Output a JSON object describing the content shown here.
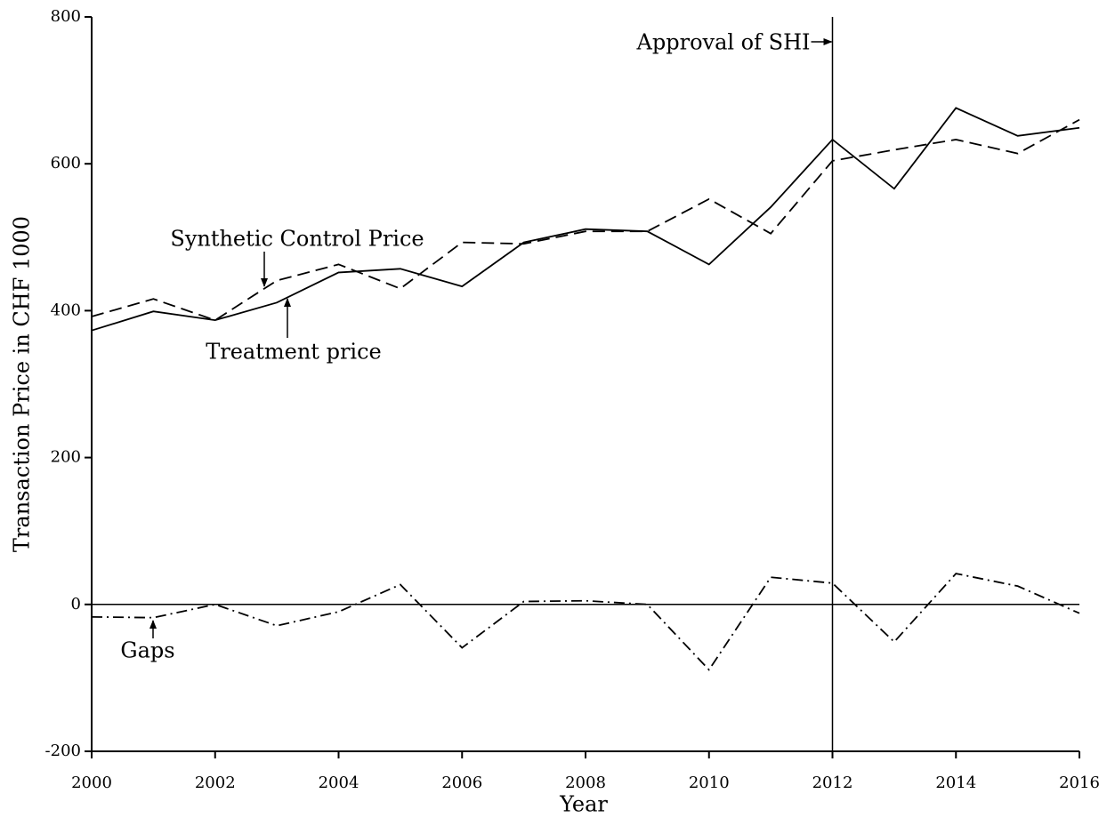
{
  "chart_data": {
    "type": "line",
    "x_label": "Year",
    "y_label": "Transaction Price in CHF 1000",
    "x": [
      2000,
      2001,
      2002,
      2003,
      2004,
      2005,
      2006,
      2007,
      2008,
      2009,
      2010,
      2011,
      2012,
      2013,
      2014,
      2015,
      2016
    ],
    "series": [
      {
        "name": "Treatment price",
        "color": "#000000",
        "dash": "solid",
        "values": [
          373,
          399,
          387,
          411,
          452,
          457,
          433,
          493,
          511,
          508,
          463,
          541,
          633,
          566,
          676,
          638,
          649
        ]
      },
      {
        "name": "Synthetic Control Price",
        "color": "#000000",
        "dash": "dashed",
        "values": [
          392,
          416,
          387,
          441,
          463,
          430,
          493,
          491,
          508,
          508,
          552,
          505,
          604,
          619,
          633,
          614,
          660
        ]
      },
      {
        "name": "Gaps",
        "color": "#000000",
        "dash": "dashdot",
        "values": [
          -17,
          -18,
          0,
          -29,
          -10,
          27,
          -59,
          4,
          5,
          0,
          -89,
          37,
          29,
          -51,
          42,
          25,
          -12
        ]
      }
    ],
    "xlim": [
      2000,
      2016
    ],
    "ylim": [
      -200,
      800
    ],
    "xticks": [
      2000,
      2002,
      2004,
      2006,
      2008,
      2010,
      2012,
      2014,
      2016
    ],
    "yticks": [
      -200,
      0,
      200,
      400,
      600,
      800
    ],
    "vline": {
      "x": 2012,
      "label": "Approval of SHI"
    },
    "hline": 0
  }
}
